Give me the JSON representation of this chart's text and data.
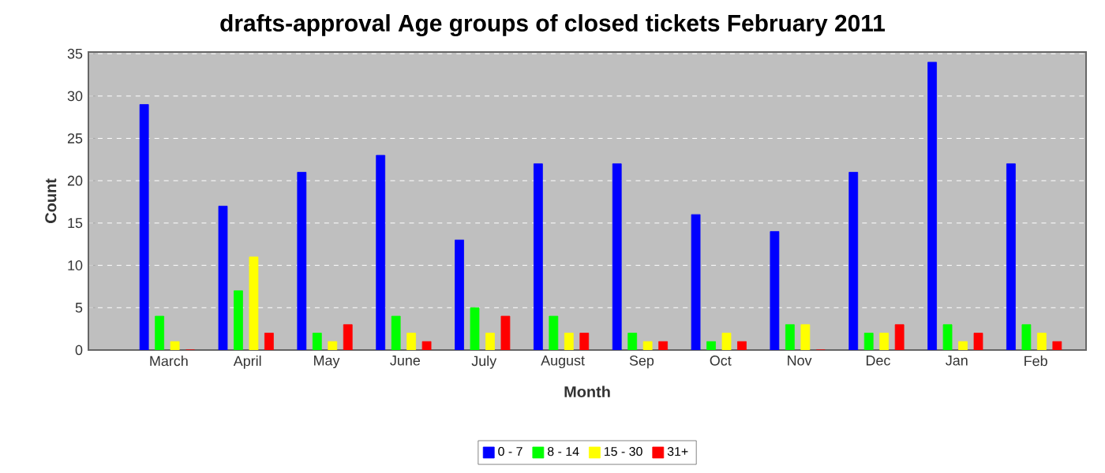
{
  "chart_data": {
    "type": "bar",
    "title": "drafts-approval Age groups of closed tickets February 2011",
    "xlabel": "Month",
    "ylabel": "Count",
    "categories": [
      "March",
      "April",
      "May",
      "June",
      "July",
      "August",
      "Sep",
      "Oct",
      "Nov",
      "Dec",
      "Jan",
      "Feb"
    ],
    "series": [
      {
        "name": "0 - 7",
        "color": "#0000ff",
        "values": [
          29,
          17,
          21,
          23,
          13,
          22,
          22,
          16,
          14,
          21,
          34,
          22
        ]
      },
      {
        "name": "8 - 14",
        "color": "#00ff00",
        "values": [
          4,
          7,
          2,
          4,
          5,
          4,
          2,
          1,
          3,
          2,
          3,
          3
        ]
      },
      {
        "name": "15 - 30",
        "color": "#ffff00",
        "values": [
          1,
          11,
          1,
          2,
          2,
          2,
          1,
          2,
          3,
          2,
          1,
          2
        ]
      },
      {
        "name": "31+",
        "color": "#ff0000",
        "values": [
          0,
          2,
          3,
          1,
          4,
          2,
          1,
          1,
          0,
          3,
          2,
          1
        ]
      }
    ],
    "ylim": [
      0,
      35.2
    ],
    "yticks": [
      0,
      5,
      10,
      15,
      20,
      25,
      30,
      35
    ],
    "grid": "y",
    "legend": "bottom"
  }
}
